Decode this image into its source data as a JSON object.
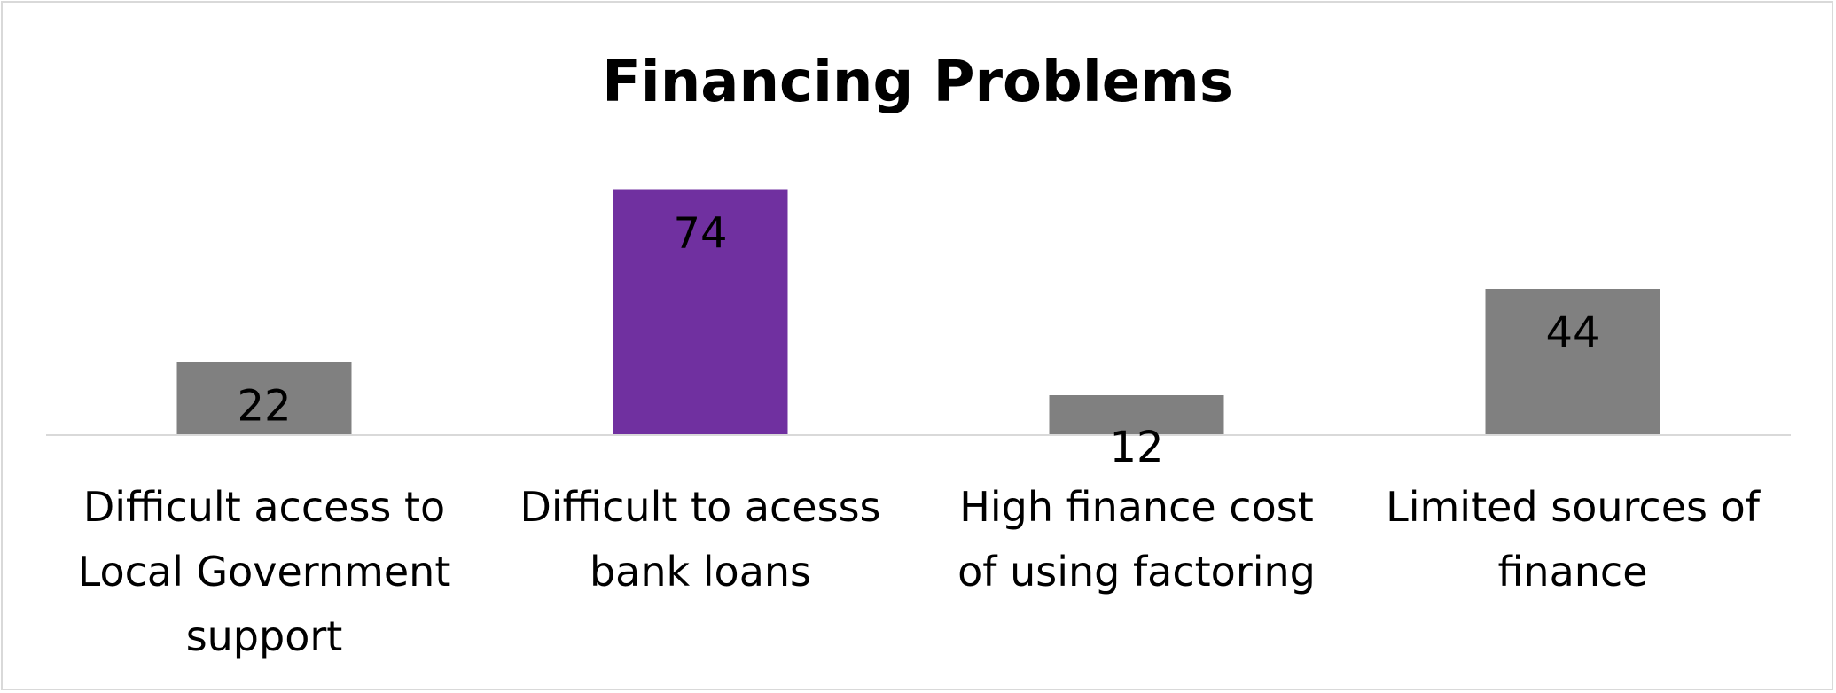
{
  "chart_data": {
    "type": "bar",
    "title": "Financing Problems",
    "categories": [
      [
        "Difficult access to",
        "Local Government",
        "support"
      ],
      [
        "Difficult to acesss",
        "bank loans"
      ],
      [
        "High finance cost",
        "of using factoring"
      ],
      [
        "Limited sources of",
        "finance"
      ]
    ],
    "values": [
      22,
      74,
      12,
      44
    ],
    "bar_colors": [
      "#808080",
      "#7030a0",
      "#808080",
      "#808080"
    ],
    "axis_color": "#d9d9d9",
    "grid": false,
    "legend": "none"
  }
}
